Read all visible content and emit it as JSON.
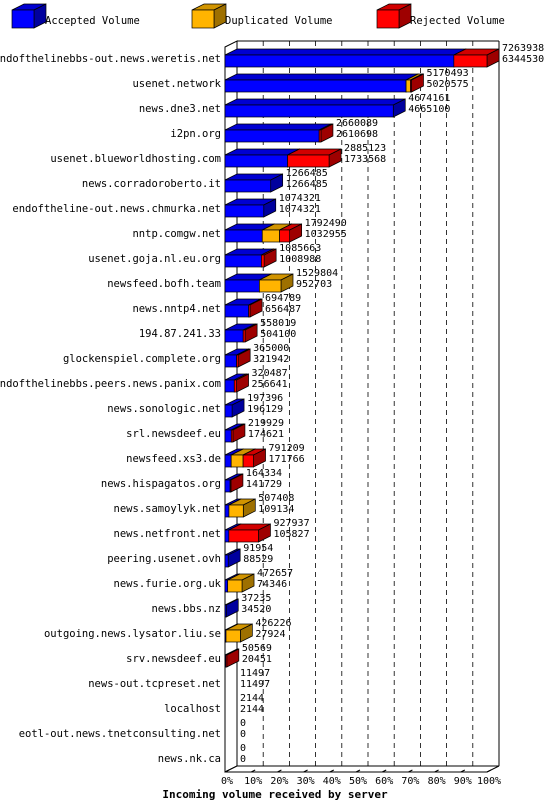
{
  "chart_data": {
    "type": "bar",
    "orientation": "horizontal",
    "stacked": true,
    "xlabel": "Incoming volume received by server",
    "xlim": [
      0,
      100
    ],
    "x_unit": "%",
    "x_ticks": [
      "0%",
      "10%",
      "20%",
      "30%",
      "40%",
      "50%",
      "60%",
      "70%",
      "80%",
      "90%",
      "100%"
    ],
    "grid": true,
    "legend_position": "top",
    "legend": [
      {
        "name": "Accepted Volume",
        "color": "#0000ff"
      },
      {
        "name": "Duplicated Volume",
        "color": "#ffb400"
      },
      {
        "name": "Rejected Volume",
        "color": "#ff0000"
      }
    ],
    "max_total": 7263938,
    "rows": [
      {
        "server": "endofthelinebbs-out.news.weretis.net",
        "total": 7263938,
        "accepted": 6344530,
        "duplicated": 0
      },
      {
        "server": "usenet.network",
        "total": 5170493,
        "accepted": 5020575,
        "duplicated": 121000
      },
      {
        "server": "news.dne3.net",
        "total": 4674161,
        "accepted": 4665100,
        "duplicated": 0
      },
      {
        "server": "i2pn.org",
        "total": 2660089,
        "accepted": 2610698,
        "duplicated": 0
      },
      {
        "server": "usenet.blueworldhosting.com",
        "total": 2885123,
        "accepted": 1733568,
        "duplicated": 0
      },
      {
        "server": "news.corradoroberto.it",
        "total": 1266485,
        "accepted": 1266485,
        "duplicated": 0
      },
      {
        "server": "endoftheline-out.news.chmurka.net",
        "total": 1074321,
        "accepted": 1074321,
        "duplicated": 0
      },
      {
        "server": "nntp.comgw.net",
        "total": 1792490,
        "accepted": 1032955,
        "duplicated": 480000
      },
      {
        "server": "usenet.goja.nl.eu.org",
        "total": 1085663,
        "accepted": 1008988,
        "duplicated": 0
      },
      {
        "server": "newsfeed.bofh.team",
        "total": 1529804,
        "accepted": 952703,
        "duplicated": 600000
      },
      {
        "server": "news.nntp4.net",
        "total": 694789,
        "accepted": 656487,
        "duplicated": 0
      },
      {
        "server": "194.87.241.33",
        "total": 558019,
        "accepted": 504100,
        "duplicated": 0
      },
      {
        "server": "glockenspiel.complete.org",
        "total": 365000,
        "accepted": 321942,
        "duplicated": 0
      },
      {
        "server": "endofthelinebbs.peers.news.panix.com",
        "total": 320487,
        "accepted": 256641,
        "duplicated": 0
      },
      {
        "server": "news.sonologic.net",
        "total": 197396,
        "accepted": 196129,
        "duplicated": 0
      },
      {
        "server": "srl.newsdeef.eu",
        "total": 219929,
        "accepted": 174621,
        "duplicated": 0
      },
      {
        "server": "newsfeed.xs3.de",
        "total": 791209,
        "accepted": 171766,
        "duplicated": 330000
      },
      {
        "server": "news.hispagatos.org",
        "total": 164334,
        "accepted": 141729,
        "duplicated": 0
      },
      {
        "server": "news.samoylyk.net",
        "total": 507408,
        "accepted": 109134,
        "duplicated": 398000
      },
      {
        "server": "news.netfront.net",
        "total": 927937,
        "accepted": 105827,
        "duplicated": 0
      },
      {
        "server": "peering.usenet.ovh",
        "total": 91954,
        "accepted": 88529,
        "duplicated": 0
      },
      {
        "server": "news.furie.org.uk",
        "total": 472657,
        "accepted": 74346,
        "duplicated": 398000
      },
      {
        "server": "news.bbs.nz",
        "total": 37235,
        "accepted": 34520,
        "duplicated": 0
      },
      {
        "server": "outgoing.news.lysator.liu.se",
        "total": 426226,
        "accepted": 27924,
        "duplicated": 398000
      },
      {
        "server": "srv.newsdeef.eu",
        "total": 50569,
        "accepted": 20451,
        "duplicated": 0
      },
      {
        "server": "news-out.tcpreset.net",
        "total": 11497,
        "accepted": 11497,
        "duplicated": 0
      },
      {
        "server": "localhost",
        "total": 2144,
        "accepted": 2144,
        "duplicated": 0
      },
      {
        "server": "eotl-out.news.tnetconsulting.net",
        "total": 0,
        "accepted": 0,
        "duplicated": 0
      },
      {
        "server": "news.nk.ca",
        "total": 0,
        "accepted": 0,
        "duplicated": 0
      }
    ]
  }
}
